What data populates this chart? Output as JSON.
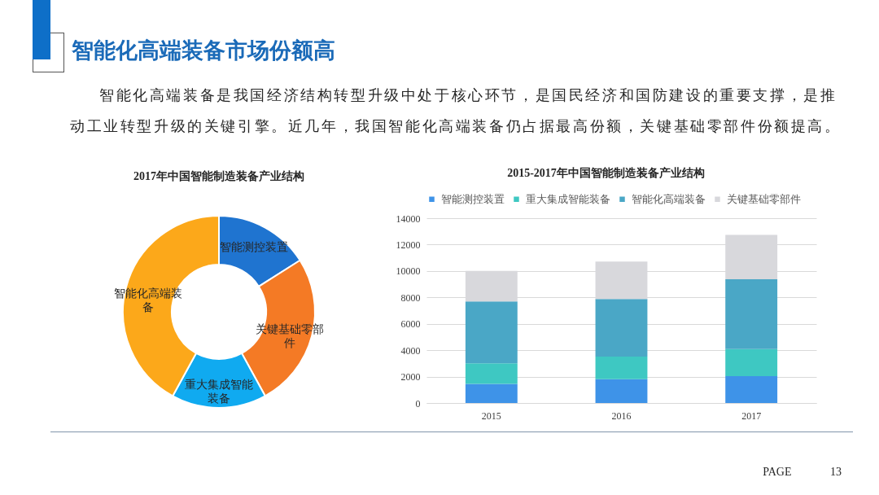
{
  "chart_data": [
    {
      "type": "other",
      "title": "智能化高端装备市场份额高",
      "subtitle": "智能化高端装备是我国经济结构转型升级中处于核心环节，是国民经济和国防建设的重要支撑，是推动工业转型升级的关键引擎。近几年，我国智能化高端装备仍占据最高份额，关键基础零部件份额提高。",
      "annotations": [
        "PAGE 13"
      ]
    },
    {
      "type": "donut",
      "title": "2017年中国智能制造装备产业结构",
      "categories": [
        "智能测控装置",
        "关键基础零部件",
        "重大集成智能装备",
        "智能化高端装备"
      ],
      "values": [
        16,
        26,
        16,
        42
      ],
      "colors": [
        "#1f74d0",
        "#f47a25",
        "#10aaf0",
        "#fca81a"
      ]
    },
    {
      "type": "bar",
      "title": "2015-2017年中国智能制造装备产业结构",
      "categories": [
        "2015",
        "2016",
        "2017"
      ],
      "stacked": true,
      "series": [
        {
          "name": "智能测控装置",
          "color": "#3e93e8",
          "values": [
            1450,
            1800,
            2030
          ]
        },
        {
          "name": "重大集成智能装备",
          "color": "#3ec8c2",
          "values": [
            1550,
            1720,
            2050
          ]
        },
        {
          "name": "智能化高端装备",
          "color": "#4aa7c6",
          "values": [
            4700,
            4360,
            5300
          ]
        },
        {
          "name": "关键基础零部件",
          "color": "#d8d8dc",
          "values": [
            2300,
            2830,
            3350
          ]
        }
      ],
      "ylim": [
        0,
        14000
      ],
      "yticks": [
        0,
        2000,
        4000,
        6000,
        8000,
        10000,
        12000,
        14000
      ],
      "grid": "y",
      "legend": "top"
    }
  ]
}
